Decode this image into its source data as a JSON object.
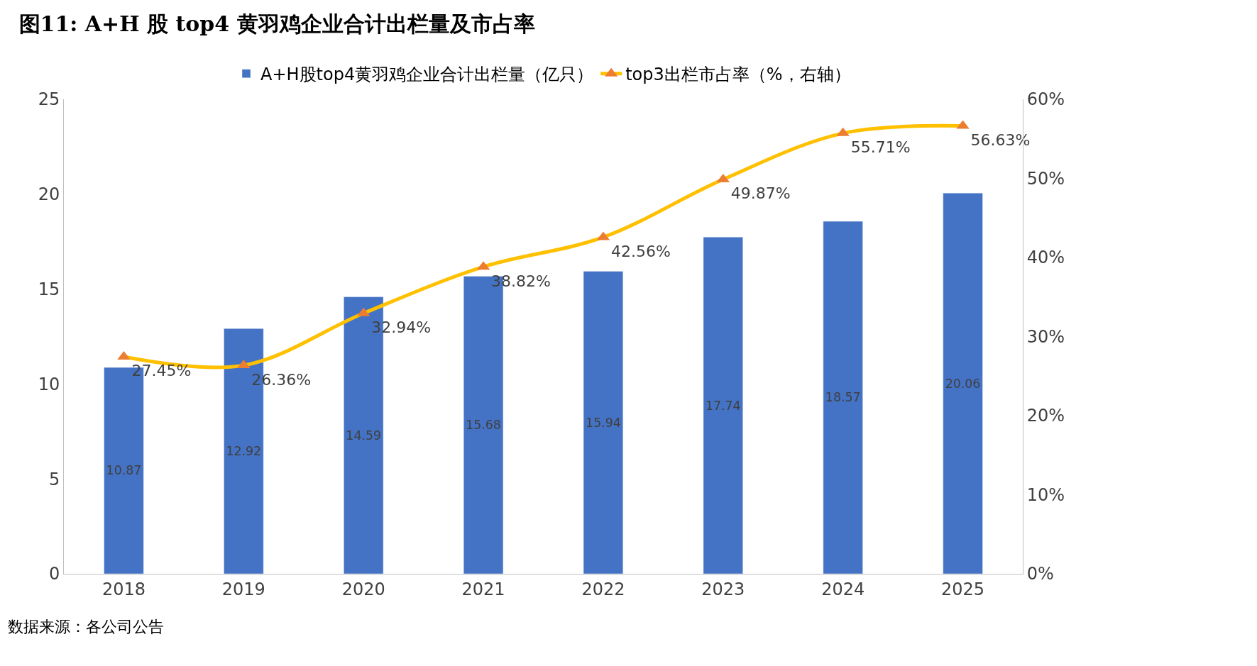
{
  "chart_data": {
    "type": "bar",
    "title": "图11: A+H 股 top4 黄羽鸡企业合计出栏量及市占率",
    "categories": [
      "2018",
      "2019",
      "2020",
      "2021",
      "2022",
      "2023",
      "2024",
      "2025"
    ],
    "series": [
      {
        "name": "A+H股top4黄羽鸡企业合计出栏量（亿只）",
        "color": "#4472c4",
        "values": [
          10.87,
          12.92,
          14.59,
          15.68,
          15.94,
          17.74,
          18.57,
          20.06
        ],
        "value_labels": [
          "10.87",
          "12.92",
          "14.59",
          "15.68",
          "15.94",
          "17.74",
          "18.57",
          "20.06"
        ]
      },
      {
        "name": "top3出栏市占率（%，右轴）",
        "type": "line",
        "axis": "y2",
        "color": "#ffc000",
        "colors": [
          "#ed7d31",
          "#ed7d31",
          "#ed7d31",
          "#ed7d31",
          "#ed7d31",
          "#ed7d31",
          "#ed7d31",
          "#ed7d31"
        ],
        "marker": "triangle",
        "values": [
          27.45,
          26.36,
          32.94,
          38.82,
          42.56,
          49.87,
          55.71,
          56.63
        ],
        "value_labels": [
          "27.45%",
          "26.36%",
          "32.94%",
          "38.82%",
          "42.56%",
          "49.87%",
          "55.71%",
          "56.63%"
        ]
      }
    ],
    "ylim": [
      0,
      25
    ],
    "yticks": [
      0,
      5,
      10,
      15,
      20,
      25
    ],
    "y2lim": [
      0,
      60
    ],
    "y2ticks": [
      {
        "value": 0,
        "label": "0%"
      },
      {
        "value": 10,
        "label": "10%"
      },
      {
        "value": 20,
        "label": "20%"
      },
      {
        "value": 30,
        "label": "30%"
      },
      {
        "value": 40,
        "label": "40%"
      },
      {
        "value": 50,
        "label": "50%"
      },
      {
        "value": 60,
        "label": "60%"
      }
    ],
    "grid": false,
    "legend": "top",
    "annotations": [
      "数据来源：各公司公告"
    ]
  }
}
